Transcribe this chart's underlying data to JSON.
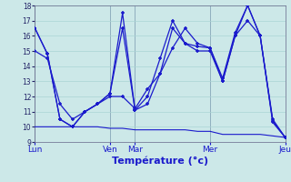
{
  "title": "Température (°c)",
  "background_color": "#cce8e8",
  "grid_color": "#aad4d4",
  "line_color": "#1a1acc",
  "x_day_labels": [
    "Lun",
    "Ven",
    "Mar",
    "Mer",
    "Jeu"
  ],
  "x_day_positions": [
    0,
    6,
    8,
    14,
    20
  ],
  "xlim": [
    0,
    20
  ],
  "ylim": [
    9,
    18
  ],
  "yticks": [
    9,
    10,
    11,
    12,
    13,
    14,
    15,
    16,
    17,
    18
  ],
  "line1_x": [
    0,
    1,
    2,
    3,
    4,
    5,
    6,
    7,
    8,
    9,
    10,
    11,
    12,
    13,
    14,
    15,
    16,
    17,
    18,
    19,
    20
  ],
  "line1_y": [
    16.5,
    14.8,
    10.5,
    10.0,
    11.0,
    11.5,
    12.2,
    17.5,
    11.1,
    11.5,
    13.5,
    16.5,
    15.5,
    15.0,
    15.0,
    13.0,
    16.0,
    18.0,
    16.0,
    10.5,
    9.3
  ],
  "line2_x": [
    0,
    1,
    2,
    3,
    4,
    5,
    6,
    7,
    8,
    9,
    10,
    11,
    12,
    13,
    14,
    15,
    16,
    17,
    18,
    19,
    20
  ],
  "line2_y": [
    16.5,
    14.8,
    10.5,
    10.0,
    11.0,
    11.5,
    12.2,
    16.5,
    11.1,
    12.0,
    14.5,
    17.0,
    15.5,
    15.3,
    15.2,
    13.2,
    16.2,
    18.0,
    16.0,
    10.3,
    9.3
  ],
  "line3_x": [
    0,
    1,
    2,
    3,
    4,
    5,
    6,
    7,
    8,
    9,
    10,
    11,
    12,
    13,
    14,
    15,
    16,
    17,
    18,
    19,
    20
  ],
  "line3_y": [
    15.0,
    14.5,
    11.5,
    10.5,
    11.0,
    11.5,
    12.0,
    12.0,
    11.2,
    12.5,
    13.5,
    15.2,
    16.5,
    15.5,
    15.2,
    13.0,
    16.0,
    17.0,
    16.0,
    10.4,
    9.3
  ],
  "line4_x": [
    0,
    1,
    2,
    3,
    4,
    5,
    6,
    7,
    8,
    9,
    10,
    11,
    12,
    13,
    14,
    15,
    16,
    17,
    18,
    19,
    20
  ],
  "line4_y": [
    10.0,
    10.0,
    10.0,
    10.0,
    10.0,
    10.0,
    9.9,
    9.9,
    9.8,
    9.8,
    9.8,
    9.8,
    9.8,
    9.7,
    9.7,
    9.5,
    9.5,
    9.5,
    9.5,
    9.4,
    9.3
  ]
}
